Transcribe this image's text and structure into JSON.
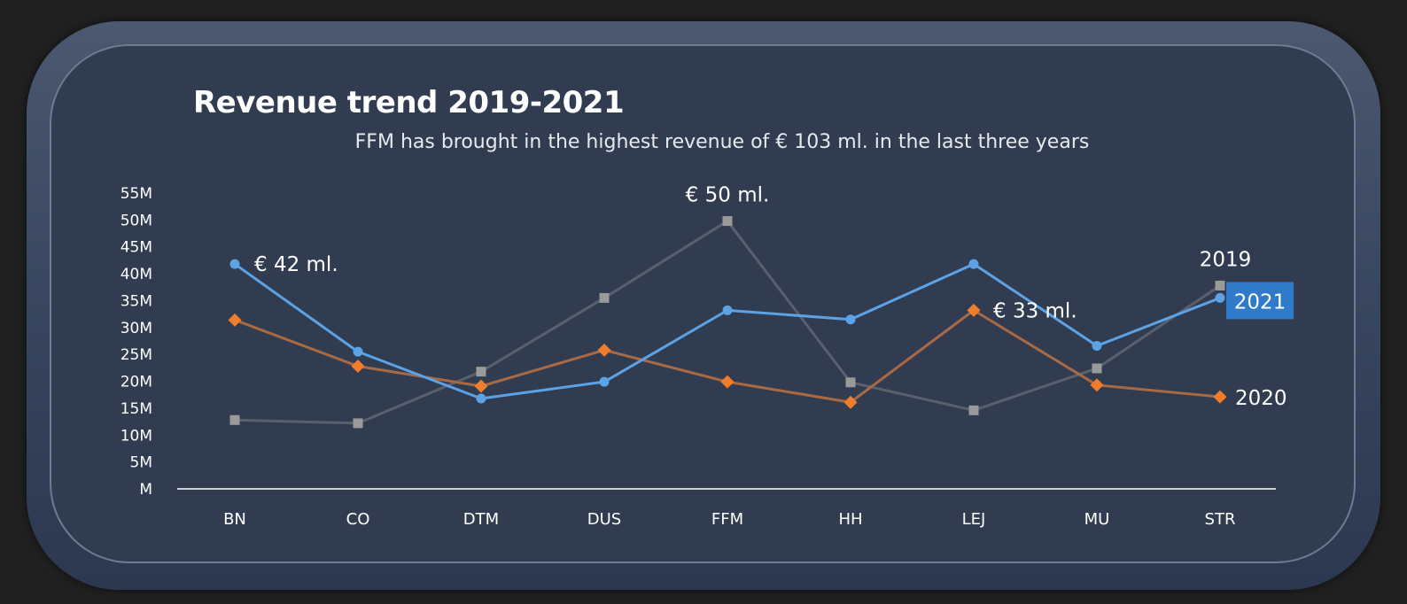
{
  "header": {
    "title": "Revenue trend 2019-2021",
    "subtitle": "FFM has brought in the highest revenue of € 103 ml. in the last three years"
  },
  "chart_data": {
    "type": "line",
    "categories": [
      "BN",
      "CO",
      "DTM",
      "DUS",
      "FFM",
      "HH",
      "LEJ",
      "MU",
      "STR"
    ],
    "y_ticks": [
      "M",
      "5M",
      "10M",
      "15M",
      "20M",
      "25M",
      "30M",
      "35M",
      "40M",
      "45M",
      "50M",
      "55M"
    ],
    "ylim": [
      0,
      55
    ],
    "grid": false,
    "series": [
      {
        "name": "2019",
        "color": "#9a9a9a",
        "line_color": "#59606d",
        "marker": "square",
        "values": [
          12.8,
          12.2,
          21.8,
          35.5,
          49.8,
          19.8,
          14.6,
          22.4,
          37.8
        ]
      },
      {
        "name": "2020",
        "color": "#f07d2b",
        "line_color": "#a86a45",
        "marker": "diamond",
        "values": [
          31.4,
          22.8,
          19.1,
          25.8,
          19.9,
          16.1,
          33.2,
          19.3,
          17.1
        ]
      },
      {
        "name": "2021",
        "color": "#5ba3e6",
        "line_color": "#5ba3e6",
        "marker": "circle",
        "label_bg": "#2f7bc9",
        "values": [
          41.8,
          25.5,
          16.8,
          19.9,
          33.2,
          31.5,
          41.8,
          26.6,
          35.5
        ]
      }
    ],
    "annotations": [
      {
        "text": "€ 42 ml.",
        "series": "2021",
        "category": "BN"
      },
      {
        "text": "€ 50 ml.",
        "series": "2019",
        "category": "FFM"
      },
      {
        "text": "€ 33 ml.",
        "series": "2020",
        "category": "LEJ"
      }
    ],
    "axis_color": "#ffffff",
    "tick_color": "#ffffff"
  }
}
